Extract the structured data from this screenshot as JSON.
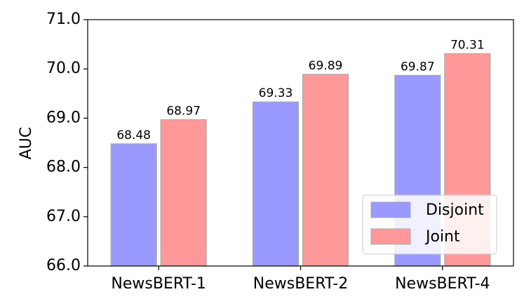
{
  "chart_data": {
    "type": "bar",
    "y_label": "AUC",
    "categories": [
      "NewsBERT-1",
      "NewsBERT-2",
      "NewsBERT-4"
    ],
    "series": [
      {
        "name": "Disjoint",
        "color": "#9999ff",
        "values": [
          68.48,
          69.33,
          69.87
        ]
      },
      {
        "name": "Joint",
        "color": "#ff9999",
        "values": [
          68.97,
          69.89,
          70.31
        ]
      }
    ],
    "ylim": [
      66,
      71
    ],
    "yticks": [
      {
        "value": 66,
        "label": "66.0"
      },
      {
        "value": 67,
        "label": "67.0"
      },
      {
        "value": 68,
        "label": "68.0"
      },
      {
        "value": 69,
        "label": "69.0"
      },
      {
        "value": 70,
        "label": "70.0"
      },
      {
        "value": 71,
        "label": "71.0"
      }
    ],
    "legend": "lower right",
    "grid": false
  }
}
